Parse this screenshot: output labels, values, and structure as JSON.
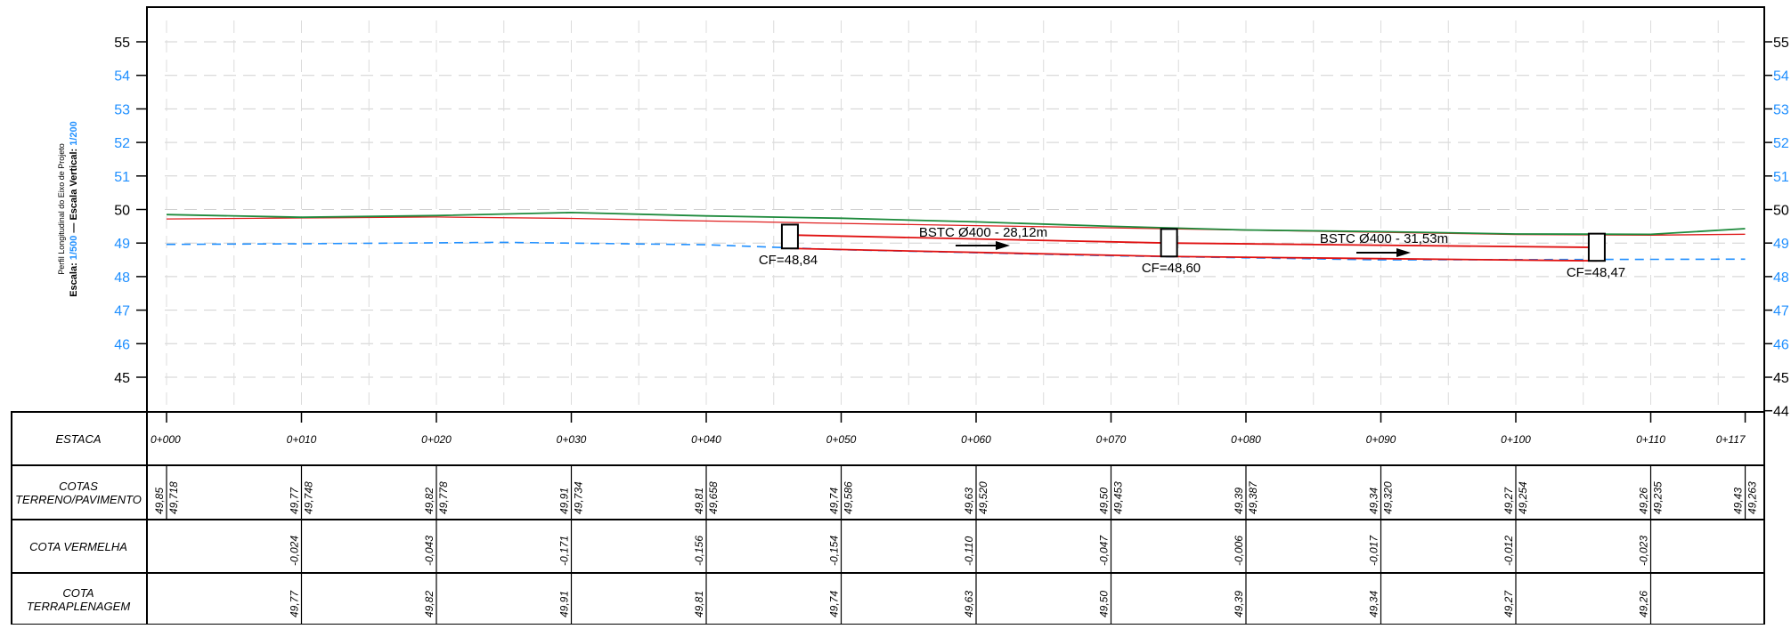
{
  "side_title": {
    "line1": "Perfil Longitudinal do Eixo de Projeto",
    "escala_label": "Escala:",
    "escala_h": "1/500",
    "sep": " — ",
    "escala_v_label": "Escala Vertical:",
    "escala_v": "1/200"
  },
  "y_axis": {
    "left_ticks": [
      "55",
      "54",
      "53",
      "52",
      "51",
      "50",
      "49",
      "48",
      "47",
      "46",
      "45"
    ],
    "right_ticks": [
      "55",
      "54",
      "53",
      "52",
      "51",
      "50",
      "49",
      "48",
      "47",
      "46",
      "45",
      "44"
    ],
    "black_values": [
      "55",
      "50",
      "45",
      "44"
    ]
  },
  "colors": {
    "terrain": "#1e8a3c",
    "pavement": "#e02020",
    "pipe": "#e01010",
    "dashed": "#1f8fff",
    "blue_label": "#1f8fff"
  },
  "profile": {
    "stations_m": [
      0,
      10,
      20,
      30,
      40,
      50,
      60,
      70,
      80,
      90,
      100,
      110,
      117
    ],
    "terreno": [
      49.85,
      49.77,
      49.82,
      49.91,
      49.81,
      49.74,
      49.63,
      49.5,
      49.39,
      49.34,
      49.27,
      49.26,
      49.43
    ],
    "pavimento": [
      49.718,
      49.748,
      49.778,
      49.734,
      49.658,
      49.586,
      49.52,
      49.453,
      49.387,
      49.32,
      49.254,
      49.235,
      49.263
    ]
  },
  "annotations": {
    "cf1": "CF=48,84",
    "cf2": "CF=48,60",
    "cf3": "CF=48,47",
    "pipe1": "BSTC Ø400 - 28,12m",
    "pipe2": "BSTC Ø400 - 31,53m"
  },
  "table": {
    "rows": {
      "estaca": "ESTACA",
      "cotas_l1": "COTAS",
      "cotas_l2": "TERRENO/PAVIMENTO",
      "vermelha": "COTA VERMELHA",
      "terrap_l1": "COTA",
      "terrap_l2": "TERRAPLENAGEM"
    },
    "estacas": [
      "0+000",
      "0+010",
      "0+020",
      "0+030",
      "0+040",
      "0+050",
      "0+060",
      "0+070",
      "0+080",
      "0+090",
      "0+100",
      "0+110",
      "0+117"
    ],
    "cotas_terreno": [
      "49,85",
      "49,77",
      "49,82",
      "49,91",
      "49,81",
      "49,74",
      "49,63",
      "49,50",
      "49,39",
      "49,34",
      "49,27",
      "49,26",
      "49,43"
    ],
    "cotas_pavimento": [
      "49,718",
      "49,748",
      "49,778",
      "49,734",
      "49,658",
      "49,586",
      "49,520",
      "49,453",
      "49,387",
      "49,320",
      "49,254",
      "49,235",
      "49,263"
    ],
    "cota_vermelha": [
      "",
      "-0,024",
      "-0,043",
      "-0,171",
      "-0,156",
      "-0,154",
      "-0,110",
      "-0,047",
      "-0,006",
      "-0,017",
      "-0,012",
      "-0,023",
      ""
    ],
    "cota_terraplenagem": [
      "",
      "49,77",
      "49,82",
      "49,91",
      "49,81",
      "49,74",
      "49,63",
      "49,50",
      "49,39",
      "49,34",
      "49,27",
      "49,26",
      ""
    ]
  }
}
